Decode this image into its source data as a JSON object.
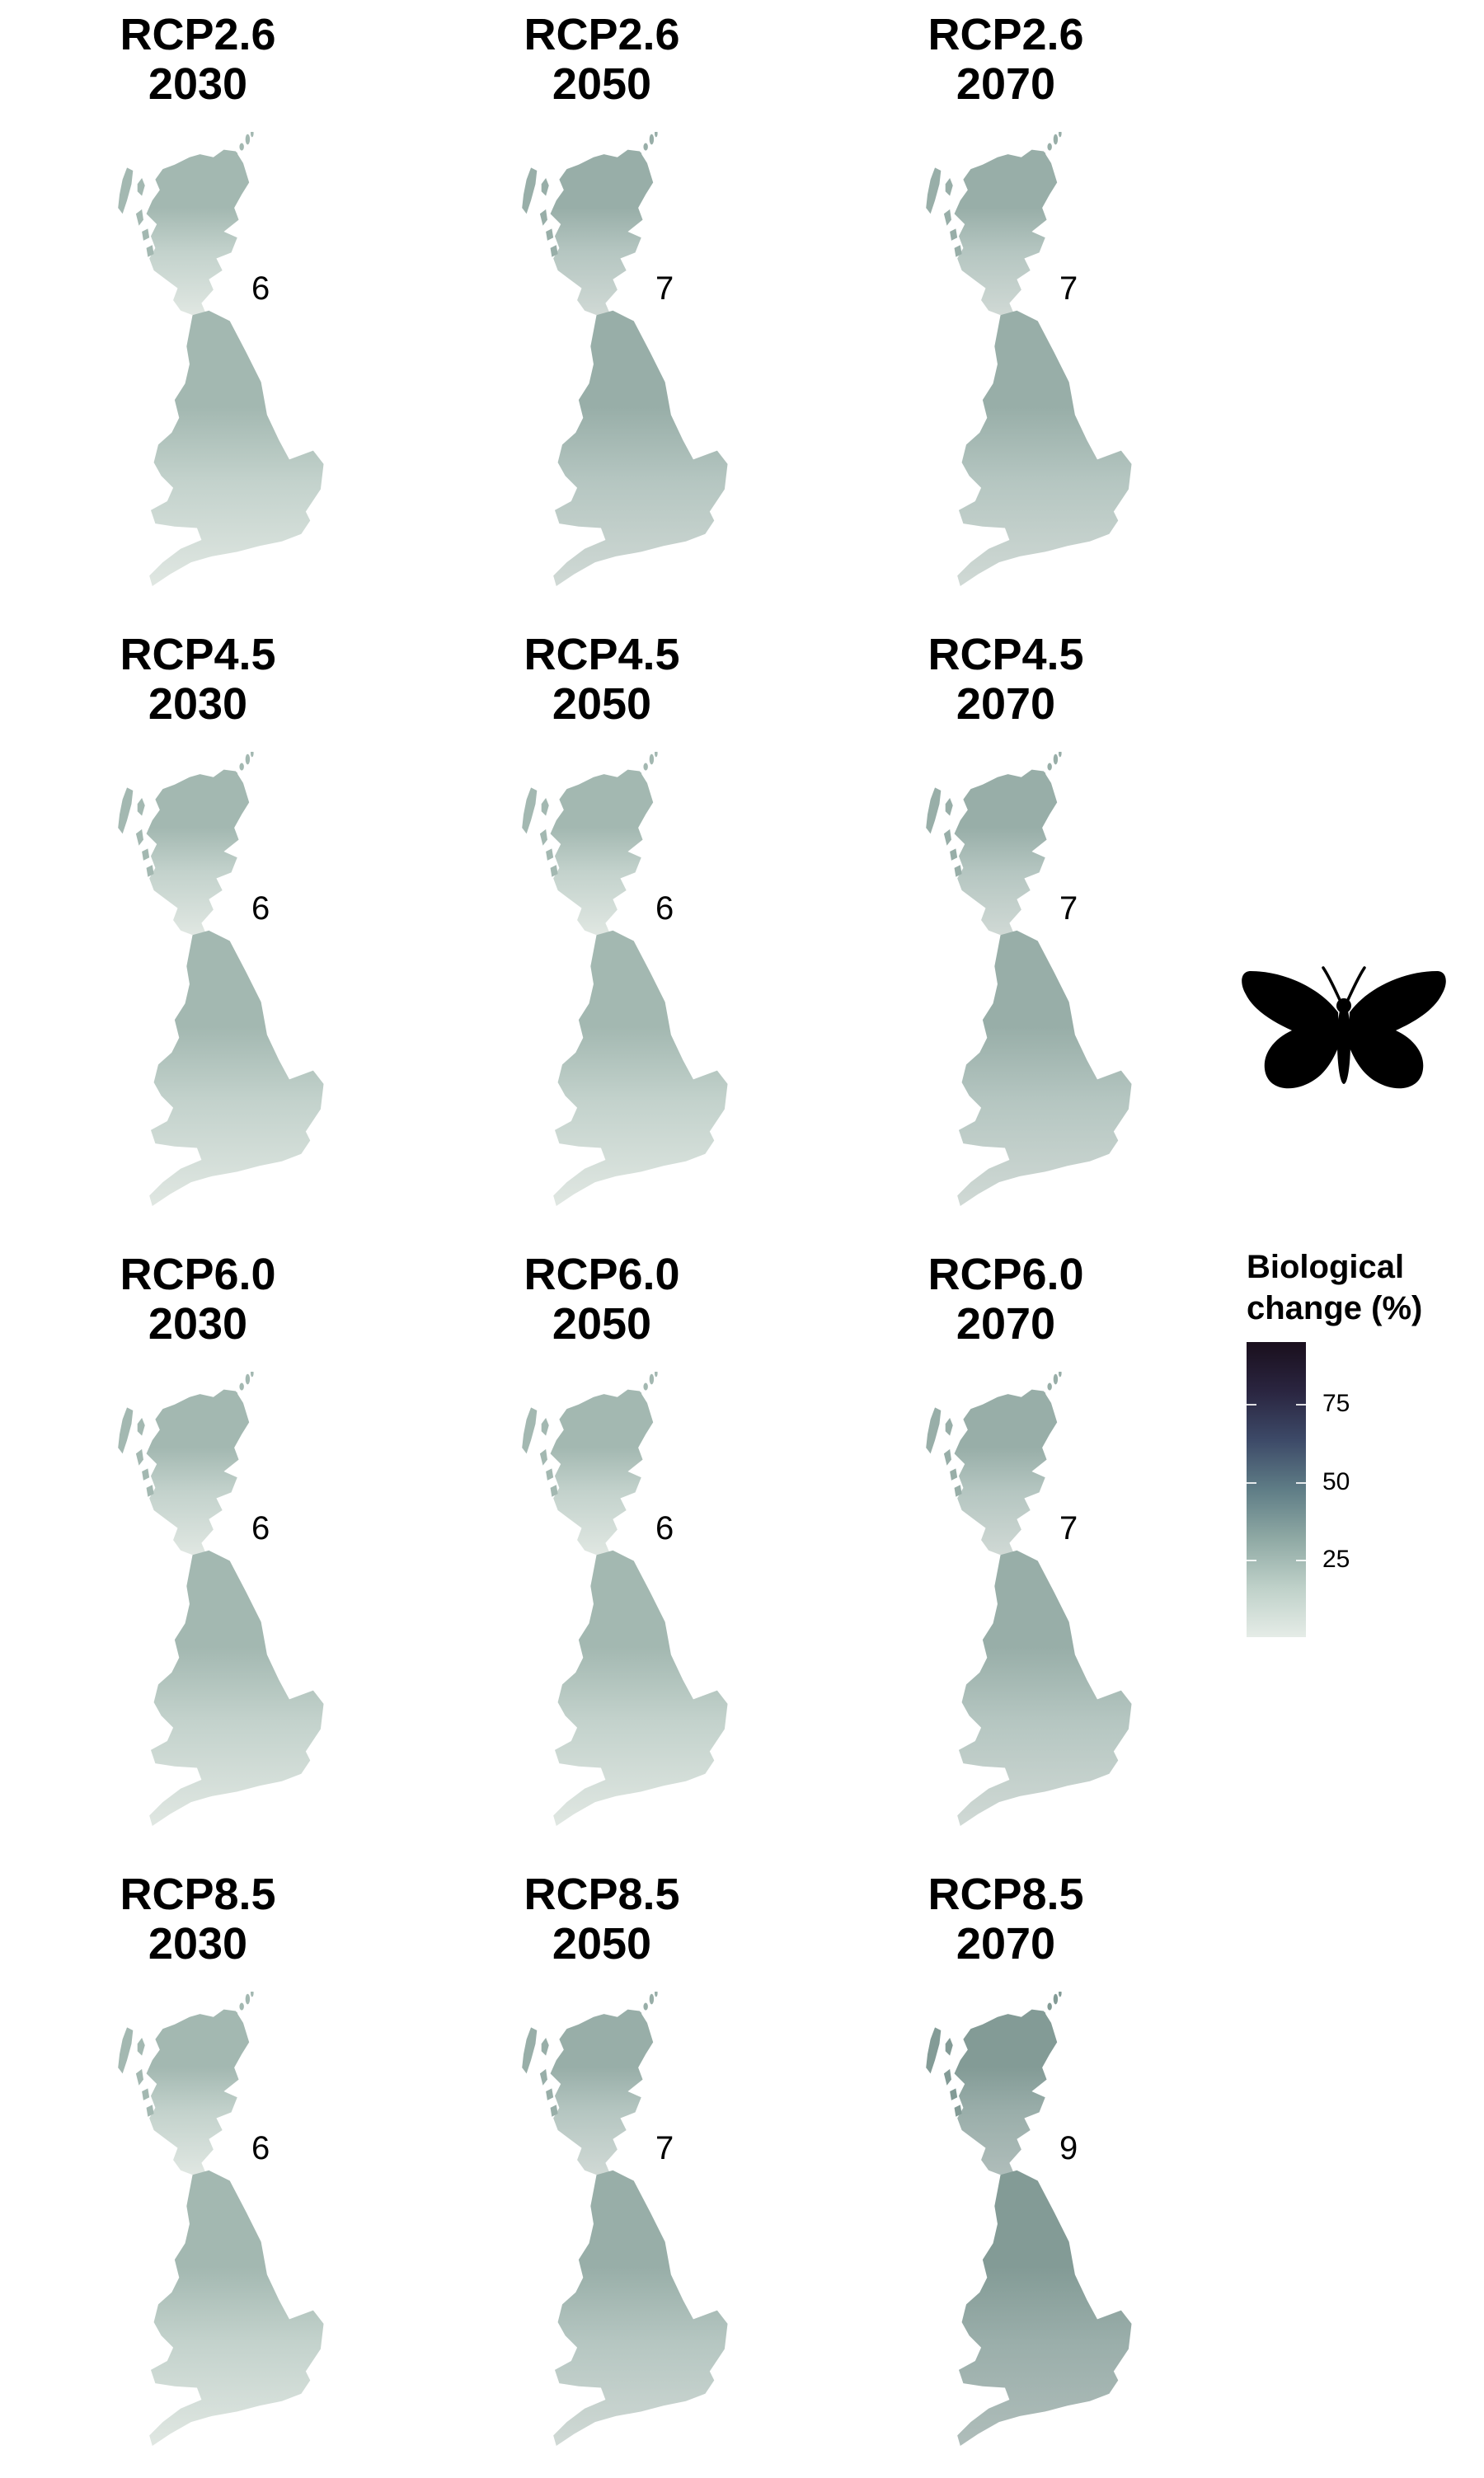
{
  "chart_data": {
    "type": "map-grid",
    "panels": [
      {
        "scenario": "RCP2.6",
        "year": "2030",
        "value": "6"
      },
      {
        "scenario": "RCP2.6",
        "year": "2050",
        "value": "7"
      },
      {
        "scenario": "RCP2.6",
        "year": "2070",
        "value": "7"
      },
      {
        "scenario": "RCP4.5",
        "year": "2030",
        "value": "6"
      },
      {
        "scenario": "RCP4.5",
        "year": "2050",
        "value": "6"
      },
      {
        "scenario": "RCP4.5",
        "year": "2070",
        "value": "7"
      },
      {
        "scenario": "RCP6.0",
        "year": "2030",
        "value": "6"
      },
      {
        "scenario": "RCP6.0",
        "year": "2050",
        "value": "6"
      },
      {
        "scenario": "RCP6.0",
        "year": "2070",
        "value": "7"
      },
      {
        "scenario": "RCP8.5",
        "year": "2030",
        "value": "6"
      },
      {
        "scenario": "RCP8.5",
        "year": "2050",
        "value": "7"
      },
      {
        "scenario": "RCP8.5",
        "year": "2070",
        "value": "9"
      }
    ],
    "legend": {
      "title_line1": "Biological",
      "title_line2": "change (%)",
      "ticks": [
        "75",
        "50",
        "25"
      ],
      "tick_values": [
        75,
        50,
        25
      ],
      "range": [
        0,
        95
      ],
      "colors": [
        "#e5ece7",
        "#bfd1c9",
        "#8fa9a4",
        "#5f7d86",
        "#3d4a68",
        "#2a2540",
        "#1a0f1d"
      ]
    },
    "map_colors": {
      "north": "#a3b8b1",
      "mid": "#c3d2cc",
      "south": "#e0e7e2"
    },
    "silhouette": "butterfly-icon"
  }
}
